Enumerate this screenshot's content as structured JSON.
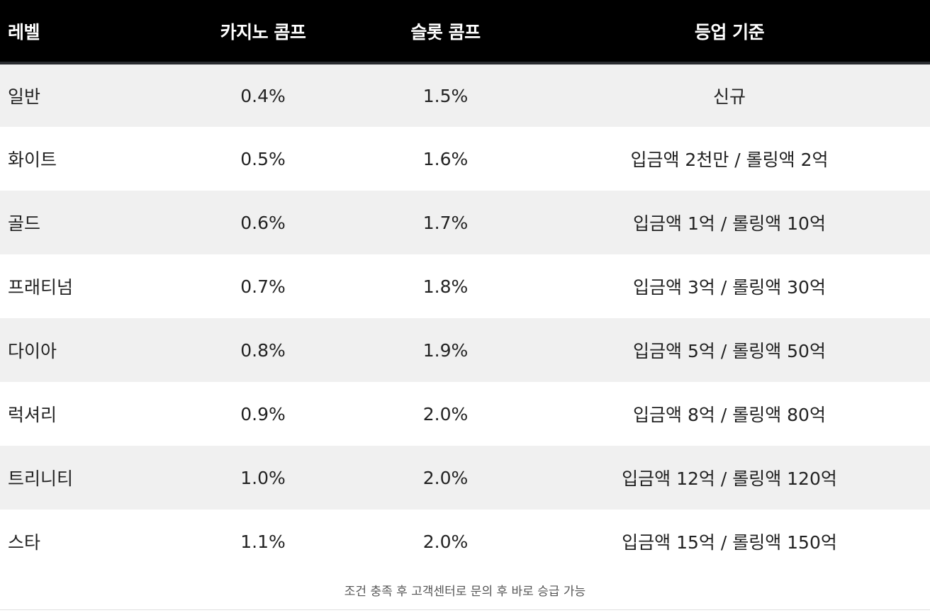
{
  "table": {
    "headers": {
      "level": "레벨",
      "casino": "카지노 콤프",
      "slot": "슬롯 콤프",
      "criteria": "등업 기준"
    },
    "rows": [
      {
        "level": "일반",
        "casino": "0.4%",
        "slot": "1.5%",
        "criteria": "신규"
      },
      {
        "level": "화이트",
        "casino": "0.5%",
        "slot": "1.6%",
        "criteria": "입금액 2천만 / 롤링액 2억"
      },
      {
        "level": "골드",
        "casino": "0.6%",
        "slot": "1.7%",
        "criteria": "입금액 1억 / 롤링액 10억"
      },
      {
        "level": "프래티넘",
        "casino": "0.7%",
        "slot": "1.8%",
        "criteria": "입금액 3억 / 롤링액 30억"
      },
      {
        "level": "다이아",
        "casino": "0.8%",
        "slot": "1.9%",
        "criteria": "입금액 5억 / 롤링액 50억"
      },
      {
        "level": "럭셔리",
        "casino": "0.9%",
        "slot": "2.0%",
        "criteria": "입금액 8억 / 롤링액 80억"
      },
      {
        "level": "트리니티",
        "casino": "1.0%",
        "slot": "2.0%",
        "criteria": "입금액 12억 / 롤링액 120억"
      },
      {
        "level": "스타",
        "casino": "1.1%",
        "slot": "2.0%",
        "criteria": "입금액 15억 / 롤링액 150억"
      }
    ]
  },
  "footnote": "조건 충족 후 고객센터로 문의 후 바로 승급 가능",
  "colors": {
    "header_bg": "#000000",
    "header_text": "#ffffff",
    "row_shade": "#f0f0f0",
    "row_plain": "#ffffff"
  }
}
